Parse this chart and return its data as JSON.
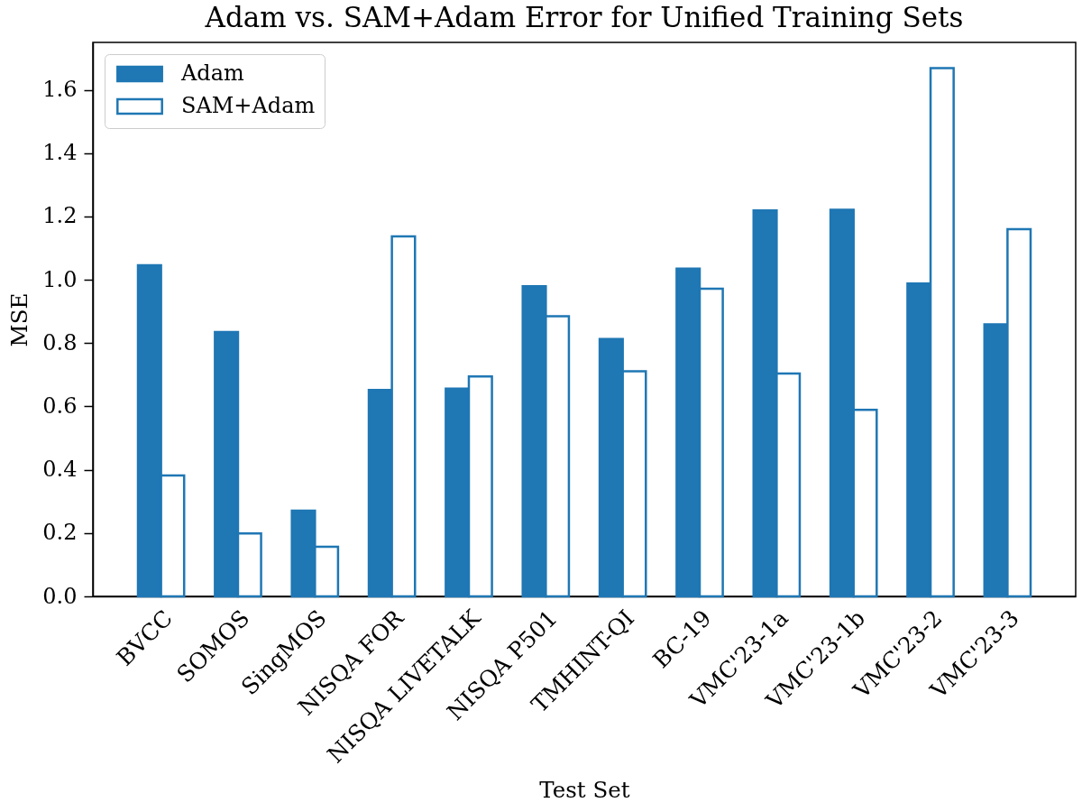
{
  "chart_data": {
    "type": "bar",
    "title": "Adam vs. SAM+Adam Error for Unified Training Sets",
    "xlabel": "Test Set",
    "ylabel": "MSE",
    "categories": [
      "BVCC",
      "SOMOS",
      "SingMOS",
      "NISQA FOR",
      "NISQA LIVETALK",
      "NISQA P501",
      "TMHINT-QI",
      "BC-19",
      "VMC'23-1a",
      "VMC'23-1b",
      "VMC'23-2",
      "VMC'23-3"
    ],
    "series": [
      {
        "name": "Adam",
        "color": "#1f77b4",
        "values": [
          1.046,
          0.835,
          0.271,
          0.652,
          0.656,
          0.98,
          0.813,
          1.035,
          1.219,
          1.221,
          0.988,
          0.859
        ]
      },
      {
        "name": "SAM+Adam",
        "color": "#1f77b4",
        "values": [
          0.382,
          0.199,
          0.157,
          1.137,
          0.695,
          0.885,
          0.711,
          0.972,
          0.704,
          0.589,
          1.669,
          1.16
        ]
      }
    ],
    "ylim": [
      0,
      1.75
    ],
    "yticks": [
      {
        "value": 0,
        "label": "0.0"
      },
      0.2,
      0.4,
      0.6,
      0.8,
      {
        "value": 1,
        "label": "1.0"
      },
      1.2,
      1.4,
      1.6
    ],
    "legend": "top left",
    "grid": false
  }
}
